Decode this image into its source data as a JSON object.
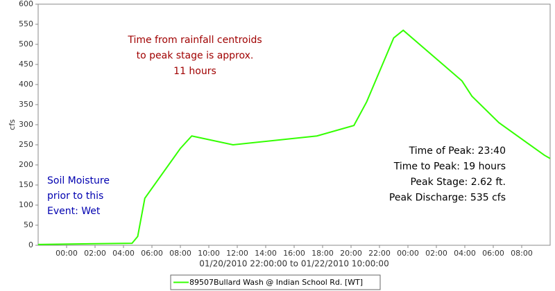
{
  "chart_data": {
    "type": "line",
    "x_label": "01/20/2010 22:00:00 to 01/22/2010 10:00:00",
    "y_label": "cfs",
    "x": [
      0,
      6.6,
      7,
      7.5,
      10,
      10.8,
      13.7,
      19.6,
      22.2,
      23.1,
      25,
      25.67,
      29.8,
      30.5,
      32.4,
      35.6,
      36
    ],
    "series": [
      {
        "name": "89507Bullard Wash @ Indian School Rd. [WT]",
        "color": "#33ff00",
        "values": [
          2,
          5,
          22,
          117,
          241,
          272,
          250,
          272,
          298,
          357,
          516,
          535,
          409,
          371,
          305,
          224,
          216
        ]
      }
    ],
    "xlim": [
      0,
      36
    ],
    "ylim": [
      0,
      600
    ],
    "yticks": [
      0,
      50,
      100,
      150,
      200,
      250,
      300,
      350,
      400,
      450,
      500,
      550,
      600
    ],
    "xticks": [
      {
        "value": 2,
        "label": "00:00"
      },
      {
        "value": 4,
        "label": "02:00"
      },
      {
        "value": 6,
        "label": "04:00"
      },
      {
        "value": 8,
        "label": "06:00"
      },
      {
        "value": 10,
        "label": "08:00"
      },
      {
        "value": 12,
        "label": "10:00"
      },
      {
        "value": 14,
        "label": "12:00"
      },
      {
        "value": 16,
        "label": "14:00"
      },
      {
        "value": 18,
        "label": "16:00"
      },
      {
        "value": 20,
        "label": "18:00"
      },
      {
        "value": 22,
        "label": "20:00"
      },
      {
        "value": 24,
        "label": "22:00"
      },
      {
        "value": 26,
        "label": "00:00"
      },
      {
        "value": 28,
        "label": "02:00"
      },
      {
        "value": 30,
        "label": "04:00"
      },
      {
        "value": 32,
        "label": "06:00"
      },
      {
        "value": 34,
        "label": "08:00"
      }
    ],
    "grid": false,
    "annotations": [
      {
        "color": "#a00000",
        "lines": [
          "Time from rainfall centroids",
          "to peak stage is approx.",
          "11 hours"
        ]
      },
      {
        "color": "#0000b0",
        "lines": [
          "Soil Moisture",
          "prior to this",
          "Event: Wet"
        ]
      },
      {
        "color": "#000000",
        "lines": [
          "Time of Peak: 23:40",
          "Time to Peak: 19 hours",
          "Peak Stage: 2.62 ft.",
          "Peak Discharge: 535 cfs"
        ]
      }
    ]
  }
}
